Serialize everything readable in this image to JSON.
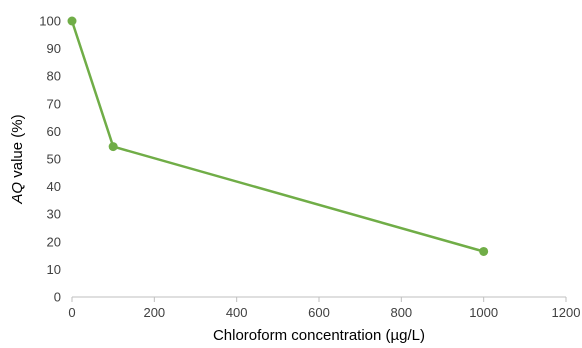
{
  "chart_data": {
    "type": "line",
    "title": "",
    "xlabel": "Chloroform concentration (µg/L)",
    "ylabel_italic": "AQ",
    "ylabel_rest": " value (%)",
    "xlim": [
      0,
      1200
    ],
    "ylim": [
      0,
      100
    ],
    "xticks": [
      0,
      200,
      400,
      600,
      800,
      1000,
      1200
    ],
    "yticks": [
      0,
      10,
      20,
      30,
      40,
      50,
      60,
      70,
      80,
      90,
      100
    ],
    "grid": false,
    "legend": "none",
    "series": [
      {
        "color": "#70ad47",
        "x": [
          0,
          100,
          1000
        ],
        "y": [
          100,
          54.5,
          16.5
        ]
      }
    ]
  }
}
